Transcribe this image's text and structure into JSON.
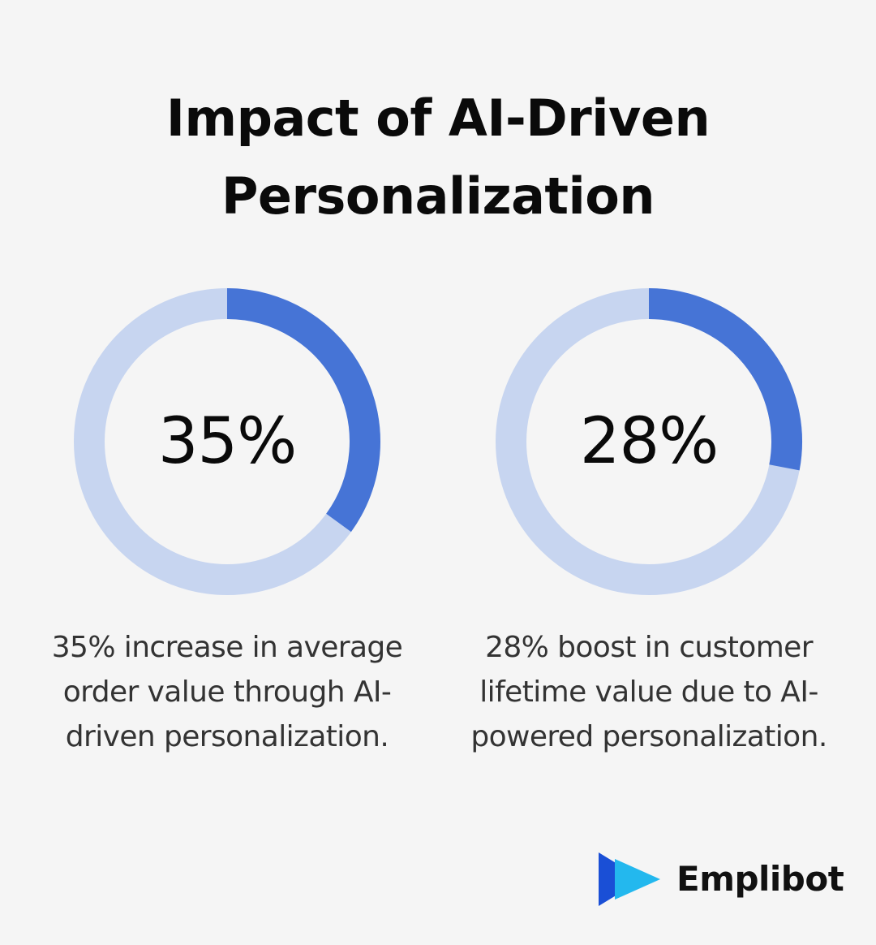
{
  "title": "Impact of AI-Driven Personalization",
  "chart_data": [
    {
      "type": "pie",
      "value": 35,
      "max": 100,
      "center_label": "35%",
      "caption": "35% increase in average order value through AI-driven personalization."
    },
    {
      "type": "pie",
      "value": 28,
      "max": 100,
      "center_label": "28%",
      "caption": "28% boost in customer lifetime value due to AI-powered personalization."
    }
  ],
  "colors": {
    "background": "#f5f5f5",
    "track": "#c7d5f0",
    "fill": "#4674d6",
    "logo_dark": "#1a4fd6",
    "logo_light": "#23b8ee"
  },
  "brand": {
    "name": "Emplibot",
    "icon": "play-arrows-icon"
  }
}
